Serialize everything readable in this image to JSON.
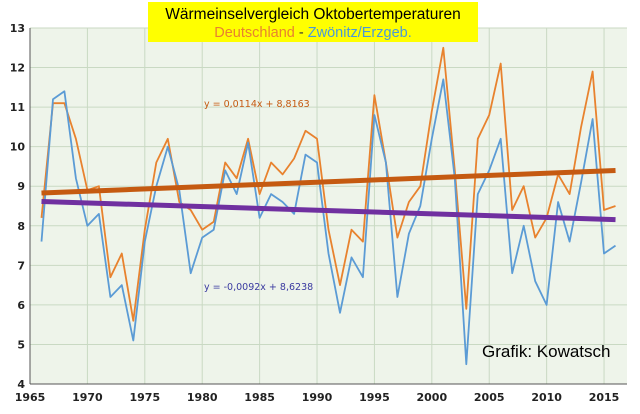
{
  "chart_data": {
    "type": "line",
    "title": "Wärmeinselvergleich Oktobertemperaturen",
    "subtitle_parts": [
      "Deutschland",
      " - ",
      "Zwönitz/Erzgeb."
    ],
    "credit": "Grafik: Kowatsch",
    "xlim": [
      1965,
      2017
    ],
    "ylim": [
      4,
      13
    ],
    "x_ticks": [
      1965,
      1970,
      1975,
      1980,
      1985,
      1990,
      1995,
      2000,
      2005,
      2010,
      2015
    ],
    "y_ticks": [
      4,
      5,
      6,
      7,
      8,
      9,
      10,
      11,
      12,
      13
    ],
    "grid": true,
    "colors": {
      "title_box": "#ffff00",
      "deutschland": "#e8822e",
      "zwoenitz": "#5b9bd5",
      "trend_deutschland": "#c55a11",
      "trend_zwoenitz": "#7030a0",
      "eq_deutschland": "#c55a11",
      "eq_zwoenitz": "#3a3aa0",
      "grid": "#c9d9c3",
      "plot_bg": "#eef4ea"
    },
    "series": [
      {
        "name": "Deutschland",
        "x": [
          1966,
          1967,
          1968,
          1969,
          1970,
          1971,
          1972,
          1973,
          1974,
          1975,
          1976,
          1977,
          1978,
          1979,
          1980,
          1981,
          1982,
          1983,
          1984,
          1985,
          1986,
          1987,
          1988,
          1989,
          1990,
          1991,
          1992,
          1993,
          1994,
          1995,
          1996,
          1997,
          1998,
          1999,
          2000,
          2001,
          2002,
          2003,
          2004,
          2005,
          2006,
          2007,
          2008,
          2009,
          2010,
          2011,
          2012,
          2013,
          2014,
          2015,
          2016
        ],
        "values": [
          8.2,
          11.1,
          11.1,
          10.2,
          8.9,
          9.0,
          6.7,
          7.3,
          5.6,
          7.9,
          9.6,
          10.2,
          8.6,
          8.4,
          7.9,
          8.1,
          9.6,
          9.2,
          10.2,
          8.8,
          9.6,
          9.3,
          9.7,
          10.4,
          10.2,
          7.9,
          6.5,
          7.9,
          7.6,
          11.3,
          9.6,
          7.7,
          8.6,
          9.0,
          10.9,
          12.5,
          9.4,
          5.9,
          10.2,
          10.8,
          12.1,
          8.4,
          9.0,
          7.7,
          8.2,
          9.3,
          8.8,
          10.5,
          11.9,
          8.4,
          8.5
        ]
      },
      {
        "name": "Zwönitz/Erzgeb.",
        "x": [
          1966,
          1967,
          1968,
          1969,
          1970,
          1971,
          1972,
          1973,
          1974,
          1975,
          1976,
          1977,
          1978,
          1979,
          1980,
          1981,
          1982,
          1983,
          1984,
          1985,
          1986,
          1987,
          1988,
          1989,
          1990,
          1991,
          1992,
          1993,
          1994,
          1995,
          1996,
          1997,
          1998,
          1999,
          2000,
          2001,
          2002,
          2003,
          2004,
          2005,
          2006,
          2007,
          2008,
          2009,
          2010,
          2011,
          2012,
          2013,
          2014,
          2015,
          2016
        ],
        "values": [
          7.6,
          11.2,
          11.4,
          9.2,
          8.0,
          8.3,
          6.2,
          6.5,
          5.1,
          7.6,
          9.0,
          10.0,
          8.9,
          6.8,
          7.7,
          7.9,
          9.4,
          8.8,
          10.1,
          8.2,
          8.8,
          8.6,
          8.3,
          9.8,
          9.6,
          7.3,
          5.8,
          7.2,
          6.7,
          10.8,
          9.6,
          6.2,
          7.8,
          8.5,
          10.2,
          11.7,
          9.2,
          4.5,
          8.8,
          9.4,
          10.2,
          6.8,
          8.0,
          6.6,
          6.0,
          8.6,
          7.6,
          9.1,
          10.7,
          7.3,
          7.5
        ]
      }
    ],
    "trendlines": [
      {
        "name": "Deutschland",
        "slope": 0.0114,
        "intercept": 8.8163,
        "equation": "y = 0,0114x + 8,8163"
      },
      {
        "name": "Zwönitz/Erzgeb.",
        "slope": -0.0092,
        "intercept": 8.6238,
        "equation": "y = -0,0092x + 8,6238"
      }
    ]
  }
}
